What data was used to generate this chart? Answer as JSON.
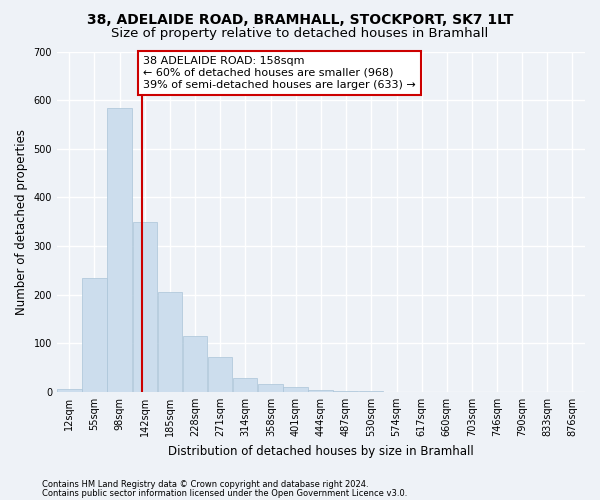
{
  "title1": "38, ADELAIDE ROAD, BRAMHALL, STOCKPORT, SK7 1LT",
  "title2": "Size of property relative to detached houses in Bramhall",
  "xlabel": "Distribution of detached houses by size in Bramhall",
  "ylabel": "Number of detached properties",
  "footer1": "Contains HM Land Registry data © Crown copyright and database right 2024.",
  "footer2": "Contains public sector information licensed under the Open Government Licence v3.0.",
  "annotation_line1": "38 ADELAIDE ROAD: 158sqm",
  "annotation_line2": "← 60% of detached houses are smaller (968)",
  "annotation_line3": "39% of semi-detached houses are larger (633) →",
  "property_size": 158,
  "bar_labels": [
    "12sqm",
    "55sqm",
    "98sqm",
    "142sqm",
    "185sqm",
    "228sqm",
    "271sqm",
    "314sqm",
    "358sqm",
    "401sqm",
    "444sqm",
    "487sqm",
    "530sqm",
    "574sqm",
    "617sqm",
    "660sqm",
    "703sqm",
    "746sqm",
    "790sqm",
    "833sqm",
    "876sqm"
  ],
  "bar_values": [
    5,
    235,
    583,
    350,
    205,
    115,
    72,
    28,
    17,
    10,
    4,
    2,
    1,
    0,
    0,
    0,
    0,
    0,
    0,
    0,
    0
  ],
  "bin_starts": [
    12,
    55,
    98,
    142,
    185,
    228,
    271,
    314,
    358,
    401,
    444,
    487,
    530,
    574,
    617,
    660,
    703,
    746,
    790,
    833,
    876
  ],
  "bin_width": 43,
  "bar_color": "#ccdded",
  "bar_edge_color": "#aac4d8",
  "vline_x": 158,
  "vline_color": "#cc0000",
  "annotation_box_color": "#cc0000",
  "background_color": "#eef2f7",
  "ylim": [
    0,
    700
  ],
  "yticks": [
    0,
    100,
    200,
    300,
    400,
    500,
    600,
    700
  ],
  "grid_color": "#ffffff",
  "title1_fontsize": 10,
  "title2_fontsize": 9.5,
  "axis_label_fontsize": 8.5,
  "tick_fontsize": 7,
  "annotation_fontsize": 8,
  "footer_fontsize": 6
}
